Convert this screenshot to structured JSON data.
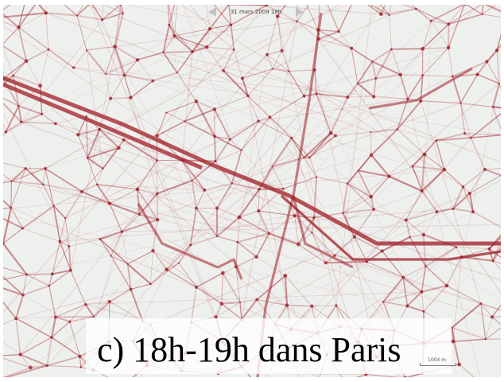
{
  "map": {
    "time_label": "31 mars 2009 18h",
    "caption": "c) 18h-19h dans Paris",
    "scale_label": "1004 m",
    "link_color": "#a01e24",
    "background_color": "#eef0ee"
  }
}
